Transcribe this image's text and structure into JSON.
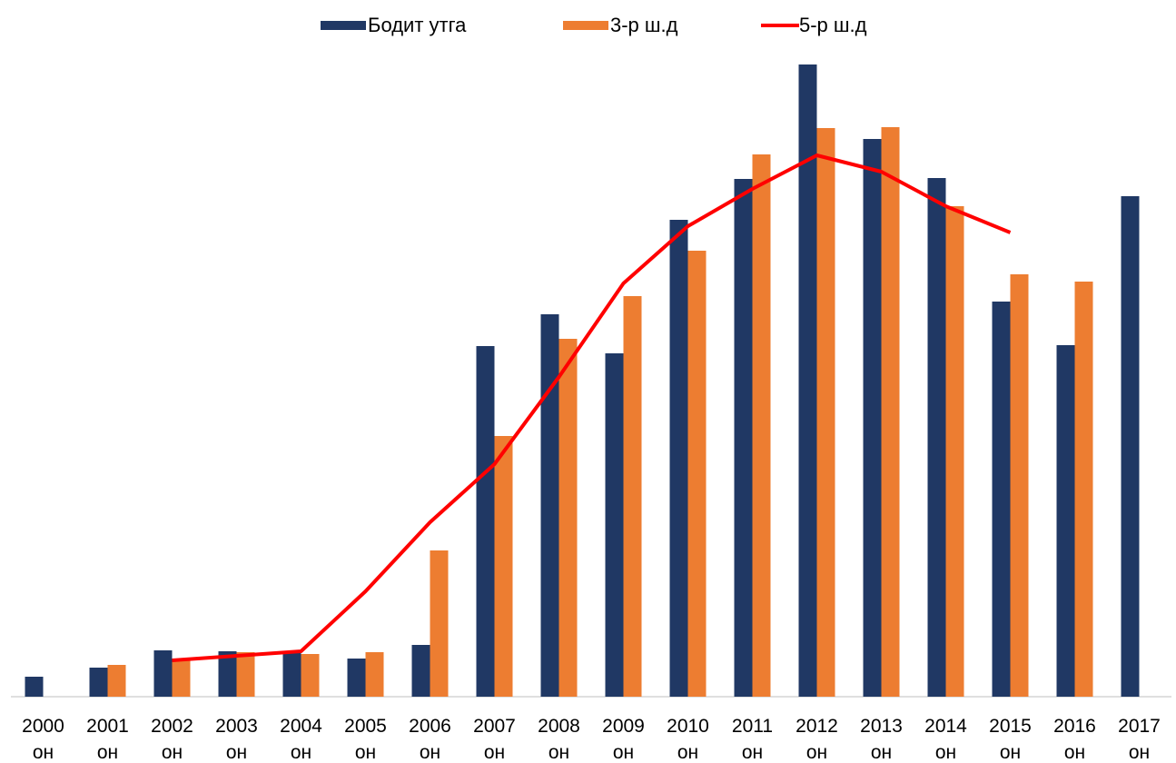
{
  "chart_data": {
    "type": "bar",
    "categories": [
      "2000 он",
      "2001 он",
      "2002 он",
      "2003 он",
      "2004 он",
      "2005 он",
      "2006 он",
      "2007 он",
      "2008 он",
      "2009 он",
      "2010 он",
      "2011 он",
      "2012 он",
      "2013 он",
      "2014 он",
      "2015 он",
      "2016 он",
      "2017 он"
    ],
    "series": [
      {
        "name": "Бодит утга",
        "color": "#203864",
        "kind": "bar",
        "values": [
          22,
          32,
          51,
          50,
          49,
          42,
          57,
          386,
          421,
          378,
          525,
          570,
          696,
          614,
          571,
          435,
          387,
          551
        ]
      },
      {
        "name": "3-р ш.д",
        "color": "#ed7d31",
        "kind": "bar",
        "values": [
          null,
          35,
          40,
          49,
          47,
          49,
          161,
          287,
          394,
          441,
          491,
          597,
          626,
          627,
          540,
          465,
          457,
          null
        ]
      },
      {
        "name": "5-р ш.д",
        "color": "#ff0000",
        "kind": "line",
        "values": [
          null,
          null,
          40,
          45,
          50,
          116,
          192,
          256,
          352,
          455,
          518,
          559,
          596,
          578,
          540,
          511,
          null,
          null
        ]
      }
    ],
    "ylim": [
      0,
      700
    ],
    "legend": "top"
  }
}
